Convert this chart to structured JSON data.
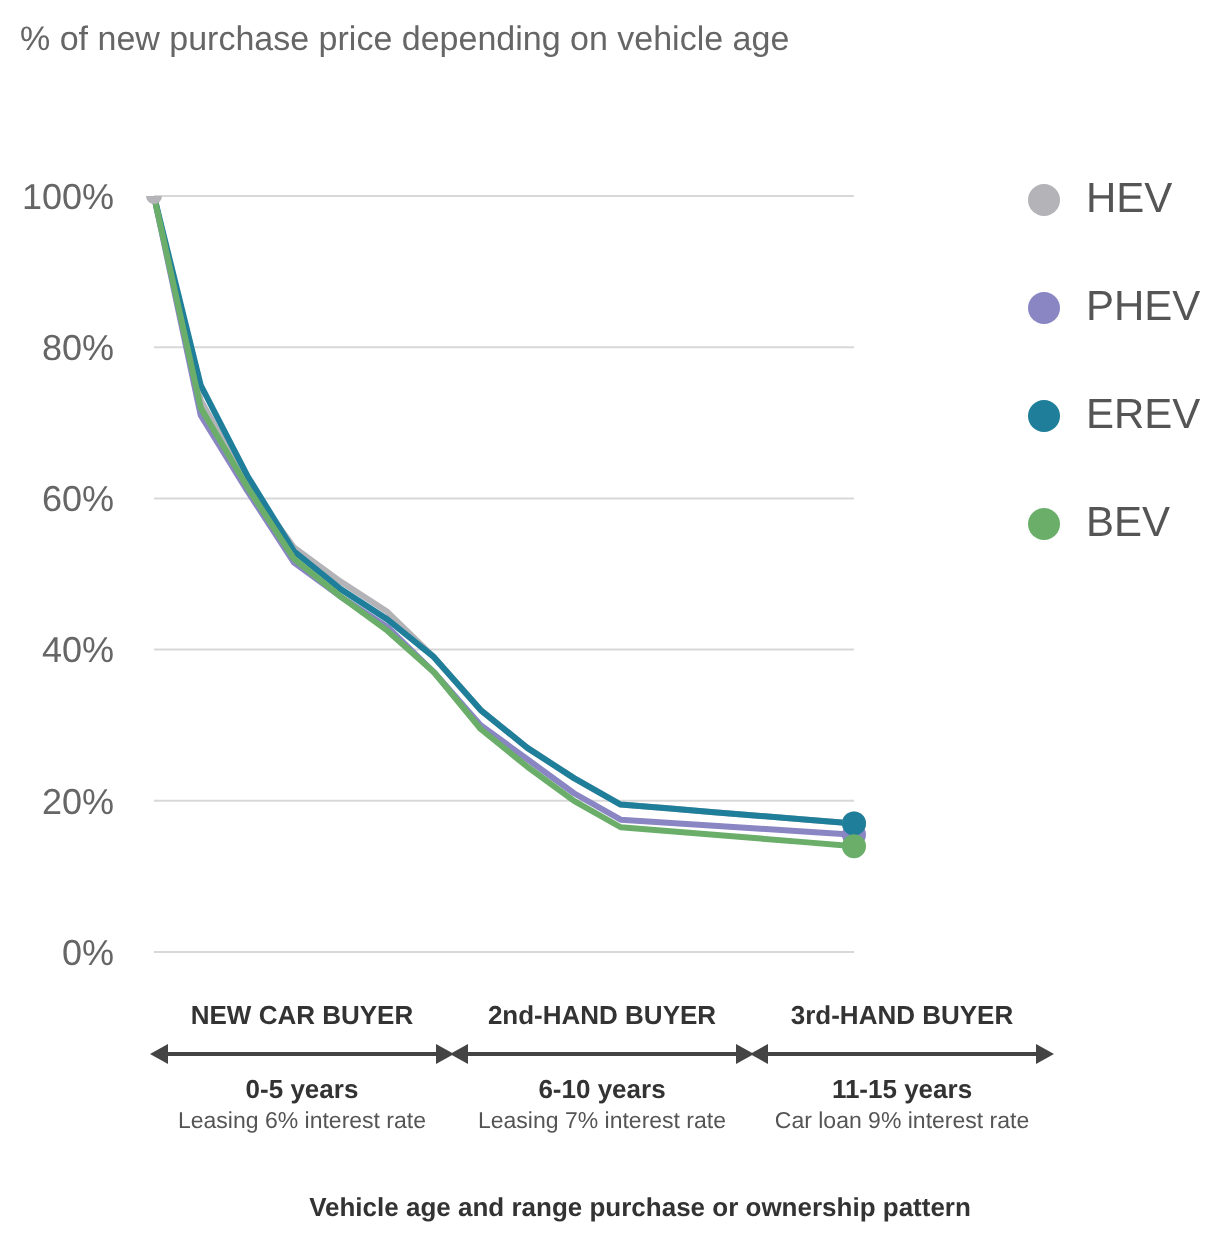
{
  "chart_data": {
    "type": "line",
    "title": "% of new purchase price depending on vehicle age",
    "categories": [
      null,
      null,
      null,
      null,
      null,
      null,
      null,
      null,
      null,
      null,
      null,
      null,
      null,
      null,
      null,
      null
    ],
    "series": [
      {
        "name": "HEV",
        "color": "#b4b4b8",
        "values": [
          100,
          73,
          62,
          53.5,
          49,
          45,
          39,
          32,
          27,
          23,
          19.5,
          19,
          18.5,
          18,
          17.5,
          17
        ]
      },
      {
        "name": "PHEV",
        "color": "#8a86c4",
        "values": [
          100,
          71,
          61,
          51.5,
          47,
          43,
          37,
          30,
          25.5,
          21,
          17.5,
          17.1,
          16.7,
          16.3,
          15.9,
          15.5
        ]
      },
      {
        "name": "EREV",
        "color": "#1f7f9a",
        "values": [
          100,
          75,
          63,
          53,
          48,
          44,
          39,
          32,
          27,
          23,
          19.5,
          19,
          18.5,
          18,
          17.5,
          17
        ]
      },
      {
        "name": "BEV",
        "color": "#6aae6a",
        "values": [
          100,
          72,
          61.5,
          52,
          47,
          42.5,
          37,
          29.5,
          24.5,
          20,
          16.5,
          16,
          15.5,
          15,
          14.5,
          14
        ]
      }
    ],
    "ylim": [
      0,
      100
    ],
    "yticks": [
      {
        "value": 0,
        "label": "0%"
      },
      {
        "value": 20,
        "label": "20%"
      },
      {
        "value": 40,
        "label": "40%"
      },
      {
        "value": 60,
        "label": "60%"
      },
      {
        "value": 80,
        "label": "80%"
      },
      {
        "value": 100,
        "label": "100%"
      }
    ],
    "tick_labels": "y",
    "grid": "y",
    "legend": "top right",
    "marker": "none",
    "line_style": "solid",
    "annotations": [
      "NEW CAR BUYER",
      "0-5 years",
      "Leasing 6% interest rate",
      "2nd-HAND BUYER",
      "6-10 years",
      "Leasing 7% interest rate",
      "3rd-HAND BUYER",
      "11-15 years",
      "Car loan 9% interest rate",
      "Vehicle age and range purchase or ownership pattern"
    ]
  }
}
